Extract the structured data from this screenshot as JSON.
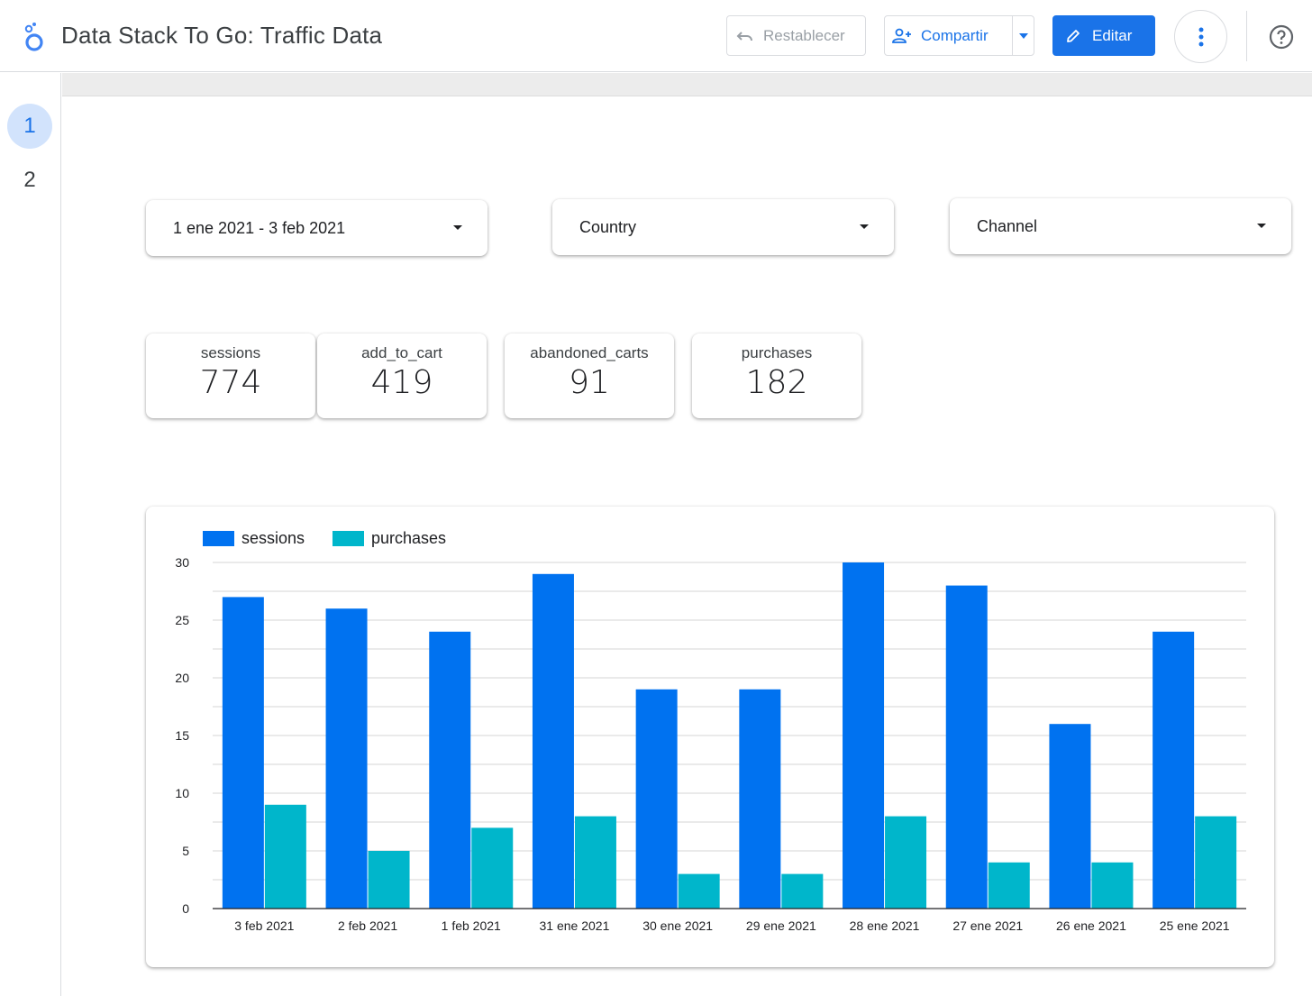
{
  "header": {
    "title": "Data Stack To Go: Traffic Data",
    "reset_label": "Restablecer",
    "share_label": "Compartir",
    "edit_label": "Editar"
  },
  "pages": [
    "1",
    "2"
  ],
  "filters": {
    "date_range": "1 ene 2021 - 3 feb 2021",
    "country": "Country",
    "channel": "Channel"
  },
  "kpis": [
    {
      "label": "sessions",
      "value": "774"
    },
    {
      "label": "add_to_cart",
      "value": "419"
    },
    {
      "label": "abandoned_carts",
      "value": "91"
    },
    {
      "label": "purchases",
      "value": "182"
    }
  ],
  "colors": {
    "accent": "#1a73e8",
    "sessions": "#0072f0",
    "purchases": "#00b6cb"
  },
  "chart_data": {
    "type": "bar",
    "categories": [
      "3 feb 2021",
      "2 feb 2021",
      "1 feb 2021",
      "31 ene 2021",
      "30 ene 2021",
      "29 ene 2021",
      "28 ene 2021",
      "27 ene 2021",
      "26 ene 2021",
      "25 ene 2021"
    ],
    "series": [
      {
        "name": "sessions",
        "values": [
          27,
          26,
          24,
          29,
          19,
          19,
          30,
          28,
          16,
          24
        ]
      },
      {
        "name": "purchases",
        "values": [
          9,
          5,
          7,
          8,
          3,
          3,
          8,
          4,
          4,
          8
        ]
      }
    ],
    "ylim": [
      0,
      30
    ],
    "yticks": [
      0,
      5,
      10,
      15,
      20,
      25,
      30
    ],
    "grid": true,
    "legend": "top-left"
  }
}
